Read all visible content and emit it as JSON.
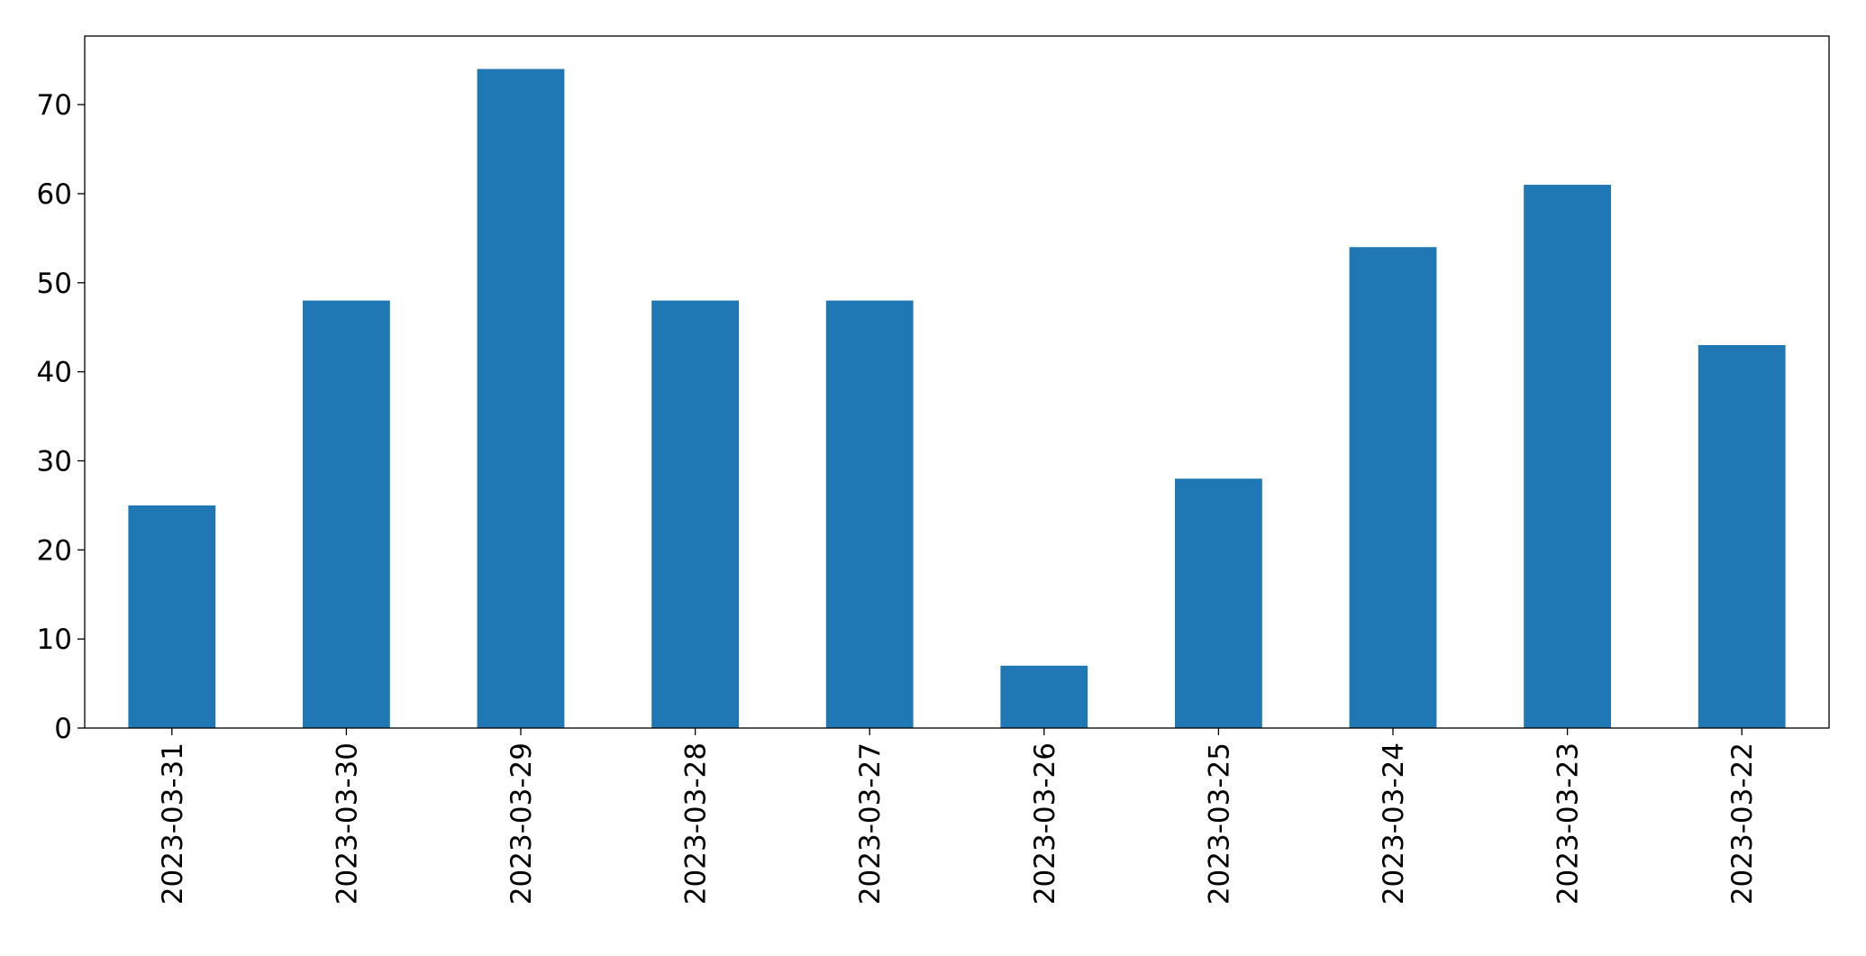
{
  "chart_data": {
    "type": "bar",
    "categories": [
      "2023-03-31",
      "2023-03-30",
      "2023-03-29",
      "2023-03-28",
      "2023-03-27",
      "2023-03-26",
      "2023-03-25",
      "2023-03-24",
      "2023-03-23",
      "2023-03-22"
    ],
    "values": [
      25,
      48,
      74,
      48,
      48,
      7,
      28,
      54,
      61,
      43
    ],
    "color": "#1f77b4",
    "ylim": [
      0,
      77.7
    ],
    "yticks": [
      0,
      10,
      20,
      30,
      40,
      50,
      60,
      70
    ],
    "grid": false
  }
}
